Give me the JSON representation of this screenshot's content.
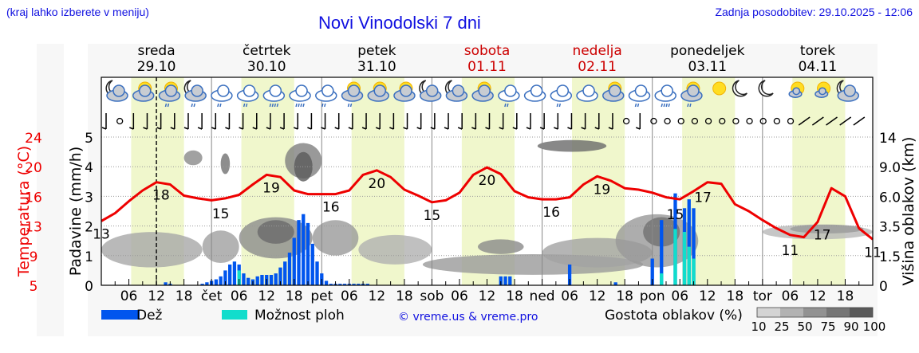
{
  "header": {
    "note": "(kraj lahko izberete v meniju)",
    "title": "Novi Vinodolski 7 dni",
    "updated": "Zadnja posodobitev: 29.10.2025 - 12:06"
  },
  "days": [
    {
      "name": "sreda",
      "date": "29.10",
      "weekend": false
    },
    {
      "name": "četrtek",
      "date": "30.10",
      "weekend": false
    },
    {
      "name": "petek",
      "date": "31.10",
      "weekend": false
    },
    {
      "name": "sobota",
      "date": "01.11",
      "weekend": true
    },
    {
      "name": "nedelja",
      "date": "02.11",
      "weekend": true
    },
    {
      "name": "ponedeljek",
      "date": "03.11",
      "weekend": false
    },
    {
      "name": "torek",
      "date": "04.11",
      "weekend": false
    }
  ],
  "colors": {
    "temperature": "#ee0000",
    "rain": "#0055ee",
    "showers": "#11ddcc",
    "daylight": "#f0f7cc",
    "weekend": "#cc0000",
    "link": "#1010e0"
  },
  "legend": {
    "rain": "Dež",
    "showers": "Možnost ploh",
    "credit": "© vreme.us & vreme.pro",
    "cloud_density": "Gostota oblakov (%)",
    "cloud_scale": [
      "10",
      "25",
      "50",
      "75",
      "90",
      "100"
    ]
  },
  "chart_data": {
    "type": "line",
    "title": "Novi Vinodolski 7 dni",
    "xlabel": "",
    "ylabel_left_outer": "Temperatura (°C)",
    "ylabel_left_inner": "Padavine (mm/h)",
    "ylabel_right": "Višina oblakov (km)",
    "x_tick_labels": [
      "06",
      "12",
      "18",
      "čet",
      "06",
      "12",
      "18",
      "pet",
      "06",
      "12",
      "18",
      "sob",
      "06",
      "12",
      "18",
      "ned",
      "06",
      "12",
      "18",
      "pon",
      "06",
      "12",
      "18",
      "tor",
      "06",
      "12",
      "18"
    ],
    "temperature_ticks": [
      "5",
      "9",
      "13",
      "16",
      "20",
      "24"
    ],
    "precip_ticks": [
      "0",
      "1",
      "2",
      "3",
      "4",
      "5"
    ],
    "cloud_height_ticks": [
      "0",
      "1.5",
      "3.5",
      "6.0",
      "9.0",
      "14"
    ],
    "ylim_precip": [
      0,
      5
    ],
    "ylim_temperature": [
      5,
      24
    ],
    "grid": true,
    "current_time_marker_hour": 12,
    "series": [
      {
        "name": "Temperatura",
        "type": "line",
        "hours": [
          0,
          3,
          6,
          9,
          12,
          15,
          18,
          21,
          24,
          27,
          30,
          33,
          36,
          39,
          42,
          45,
          48,
          51,
          54,
          57,
          60,
          63,
          66,
          69,
          72,
          75,
          78,
          81,
          84,
          87,
          90,
          93,
          96,
          99,
          102,
          105,
          108,
          111,
          114,
          117,
          120,
          123,
          126,
          129,
          132,
          135,
          138,
          141,
          144,
          147,
          150,
          153,
          156,
          159,
          162,
          165,
          168
        ],
        "values": [
          13.5,
          14.3,
          15.5,
          16.8,
          17.9,
          17.6,
          16.1,
          15.8,
          15.6,
          15.8,
          16.2,
          17.6,
          18.9,
          18.6,
          16.8,
          16.3,
          16.3,
          16.3,
          16.8,
          18.9,
          19.5,
          18.6,
          16.9,
          16.1,
          15.4,
          15.6,
          16.5,
          18.9,
          19.9,
          19.0,
          16.7,
          15.9,
          15.7,
          15.7,
          15.9,
          17.6,
          18.7,
          18.1,
          17.1,
          16.9,
          16.5,
          15.9,
          15.7,
          16.7,
          17.9,
          17.7,
          15.2,
          14.5,
          13.6,
          12.7,
          11.8,
          11.5,
          13.4,
          17.1,
          16.0,
          12.7,
          11.2
        ],
        "labels": [
          {
            "hour": 0,
            "value": "13"
          },
          {
            "hour": 13,
            "value": "18"
          },
          {
            "hour": 26,
            "value": "15"
          },
          {
            "hour": 37,
            "value": "19"
          },
          {
            "hour": 50,
            "value": "16"
          },
          {
            "hour": 60,
            "value": "20"
          },
          {
            "hour": 72,
            "value": "15"
          },
          {
            "hour": 84,
            "value": "20"
          },
          {
            "hour": 98,
            "value": "16"
          },
          {
            "hour": 109,
            "value": "19"
          },
          {
            "hour": 125,
            "value": "15"
          },
          {
            "hour": 131,
            "value": "17"
          },
          {
            "hour": 150,
            "value": "11"
          },
          {
            "hour": 157,
            "value": "17"
          },
          {
            "hour": 168,
            "value": "11"
          }
        ]
      },
      {
        "name": "Dež (mm/h)",
        "type": "bar",
        "hours": [
          14,
          15,
          22,
          23,
          24,
          25,
          26,
          27,
          28,
          29,
          30,
          31,
          32,
          33,
          34,
          35,
          36,
          37,
          38,
          39,
          40,
          41,
          42,
          43,
          44,
          45,
          46,
          47,
          48,
          49,
          50,
          51,
          52,
          53,
          54,
          55,
          56,
          57,
          58,
          87,
          88,
          89,
          102,
          112,
          120,
          122,
          125,
          127,
          128,
          129
        ],
        "values": [
          0.1,
          0.05,
          0.05,
          0.1,
          0.15,
          0.2,
          0.3,
          0.5,
          0.7,
          0.8,
          0.7,
          0.4,
          0.25,
          0.2,
          0.3,
          0.35,
          0.35,
          0.35,
          0.4,
          0.6,
          0.8,
          1.1,
          1.6,
          2.2,
          2.4,
          2.1,
          1.4,
          0.8,
          0.4,
          0.15,
          0.05,
          0.05,
          0.05,
          0.05,
          0.05,
          0.05,
          0.05,
          0.05,
          0.05,
          0.3,
          0.3,
          0.3,
          0.7,
          0.1,
          0.9,
          2.2,
          3.1,
          2.6,
          2.9,
          2.6
        ]
      },
      {
        "name": "Možnost ploh",
        "type": "bar",
        "hours": [
          30,
          122,
          125,
          127,
          128,
          129
        ],
        "values": [
          0.5,
          0.4,
          1.9,
          1.8,
          1.3,
          0.9
        ]
      }
    ]
  },
  "weather_icons": [
    "night-cloud",
    "sun-cloud",
    "sun-cloud-drizzle",
    "night-cloud-drizzle",
    "cloud-drizzle",
    "cloud-drizzle",
    "cloud-rain",
    "cloud-rain",
    "cloud-drizzle",
    "sun-cloud-drizzle",
    "sun-cloud",
    "sun-cloud",
    "night-cloud",
    "night-cloud",
    "sun-cloud",
    "cloud-drizzle",
    "cloud",
    "cloud-drizzle",
    "cloud",
    "sun-cloud",
    "cloud-drizzle",
    "cloud-rain",
    "sun-cloud-drizzle",
    "sun",
    "moon",
    "moon",
    "sun-small-cloud",
    "sun-small-cloud",
    "night-cloud"
  ]
}
